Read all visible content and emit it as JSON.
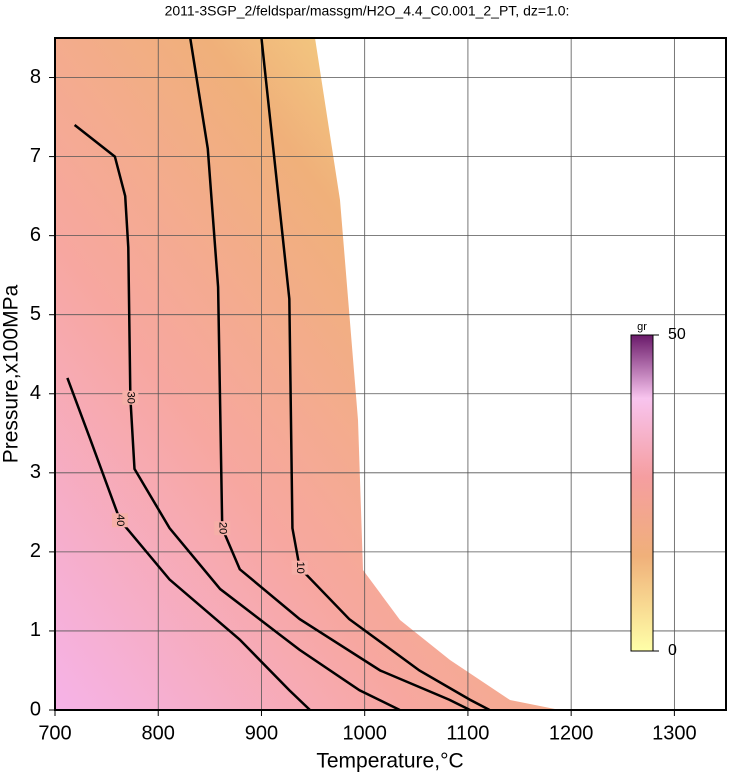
{
  "chart_data": {
    "type": "contour",
    "title": "2011-3SGP_2/feldspar/massgm/H2O_4.4_C0.001_2_PT, dz=1.0:",
    "x_label": "Temperature,°C",
    "y_label": "Pressure,x100MPa",
    "xlim": [
      700,
      1350
    ],
    "xticks": [
      700,
      800,
      900,
      1000,
      1100,
      1200,
      1300
    ],
    "ylim": [
      0,
      8.5
    ],
    "yticks": [
      0,
      1,
      2,
      3,
      4,
      5,
      6,
      7,
      8
    ],
    "grid": true,
    "series": [
      {
        "name": "10",
        "color": "#000000",
        "x": [
          900,
          927,
          930,
          937,
          985,
          1053,
          1102,
          1121
        ],
        "y": [
          8.5,
          5.2,
          2.3,
          1.8,
          1.15,
          0.5,
          0.13,
          0
        ]
      },
      {
        "name": "20",
        "color": "#000000",
        "x": [
          831,
          848,
          858,
          862,
          879,
          937,
          1015,
          1082,
          1102
        ],
        "y": [
          8.5,
          7.1,
          5.35,
          2.3,
          1.78,
          1.15,
          0.5,
          0.13,
          0
        ]
      },
      {
        "name": "30",
        "color": "#000000",
        "x": [
          719,
          758,
          768,
          771,
          773,
          777,
          811,
          860,
          937,
          995,
          1034
        ],
        "y": [
          7.4,
          7.0,
          6.5,
          5.85,
          3.95,
          3.05,
          2.3,
          1.53,
          0.76,
          0.25,
          0
        ]
      },
      {
        "name": "40",
        "color": "#000000",
        "x": [
          712,
          734,
          763,
          811,
          879,
          927,
          947
        ],
        "y": [
          4.2,
          3.43,
          2.4,
          1.65,
          0.89,
          0.25,
          0
        ]
      }
    ],
    "colorbar": {
      "label": "gr",
      "lim": [
        0,
        50
      ],
      "ticks": [
        0,
        50
      ]
    }
  }
}
